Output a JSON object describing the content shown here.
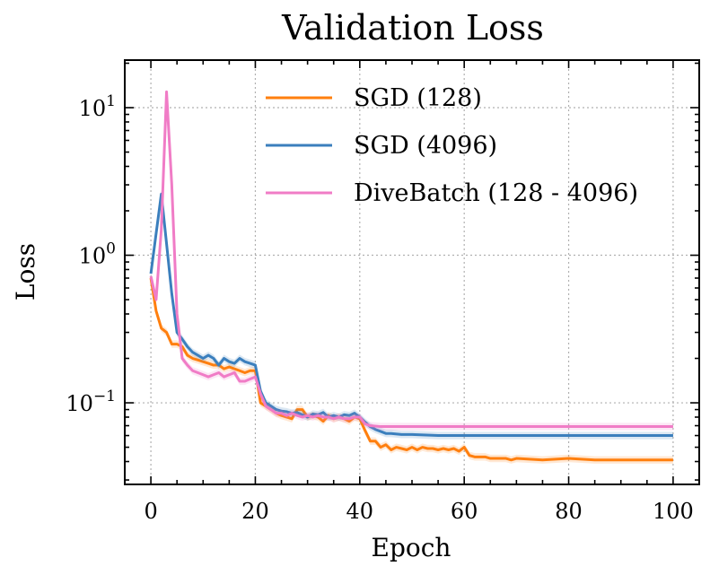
{
  "chart_data": {
    "type": "line",
    "title": "Validation Loss",
    "xlabel": "Epoch",
    "ylabel": "Loss",
    "yscale": "log",
    "xlim": [
      -5,
      105
    ],
    "ylim": [
      0.028,
      21
    ],
    "x_ticks": [
      0,
      20,
      40,
      60,
      80,
      100
    ],
    "y_ticks": [
      {
        "value": 10,
        "base": "10",
        "exp": "1"
      },
      {
        "value": 1,
        "base": "10",
        "exp": "0"
      },
      {
        "value": 0.1,
        "base": "10",
        "exp": "−1"
      }
    ],
    "grid": true,
    "legend_position": "top-right",
    "series": [
      {
        "name": "SGD (128)",
        "color": "#ff7f0e",
        "points": [
          [
            0,
            0.7
          ],
          [
            1,
            0.42
          ],
          [
            2,
            0.32
          ],
          [
            3,
            0.3
          ],
          [
            4,
            0.25
          ],
          [
            5,
            0.25
          ],
          [
            6,
            0.24
          ],
          [
            7,
            0.21
          ],
          [
            8,
            0.2
          ],
          [
            9,
            0.195
          ],
          [
            10,
            0.19
          ],
          [
            11,
            0.185
          ],
          [
            12,
            0.18
          ],
          [
            13,
            0.18
          ],
          [
            14,
            0.17
          ],
          [
            15,
            0.175
          ],
          [
            16,
            0.17
          ],
          [
            17,
            0.165
          ],
          [
            18,
            0.16
          ],
          [
            19,
            0.165
          ],
          [
            20,
            0.165
          ],
          [
            21,
            0.1
          ],
          [
            22,
            0.095
          ],
          [
            23,
            0.09
          ],
          [
            24,
            0.085
          ],
          [
            25,
            0.082
          ],
          [
            26,
            0.08
          ],
          [
            27,
            0.078
          ],
          [
            28,
            0.09
          ],
          [
            29,
            0.09
          ],
          [
            30,
            0.08
          ],
          [
            31,
            0.082
          ],
          [
            32,
            0.08
          ],
          [
            33,
            0.075
          ],
          [
            34,
            0.082
          ],
          [
            35,
            0.078
          ],
          [
            36,
            0.08
          ],
          [
            37,
            0.078
          ],
          [
            38,
            0.075
          ],
          [
            39,
            0.08
          ],
          [
            40,
            0.078
          ],
          [
            41,
            0.065
          ],
          [
            42,
            0.055
          ],
          [
            43,
            0.055
          ],
          [
            44,
            0.05
          ],
          [
            45,
            0.052
          ],
          [
            46,
            0.048
          ],
          [
            47,
            0.05
          ],
          [
            48,
            0.049
          ],
          [
            49,
            0.048
          ],
          [
            50,
            0.05
          ],
          [
            51,
            0.048
          ],
          [
            52,
            0.05
          ],
          [
            53,
            0.049
          ],
          [
            54,
            0.049
          ],
          [
            55,
            0.048
          ],
          [
            56,
            0.049
          ],
          [
            57,
            0.048
          ],
          [
            58,
            0.049
          ],
          [
            59,
            0.047
          ],
          [
            60,
            0.05
          ],
          [
            61,
            0.044
          ],
          [
            62,
            0.043
          ],
          [
            63,
            0.043
          ],
          [
            64,
            0.043
          ],
          [
            65,
            0.042
          ],
          [
            66,
            0.042
          ],
          [
            67,
            0.042
          ],
          [
            68,
            0.042
          ],
          [
            69,
            0.041
          ],
          [
            70,
            0.042
          ],
          [
            75,
            0.041
          ],
          [
            80,
            0.042
          ],
          [
            85,
            0.041
          ],
          [
            90,
            0.041
          ],
          [
            95,
            0.041
          ],
          [
            100,
            0.041
          ]
        ]
      },
      {
        "name": "SGD (4096)",
        "color": "#3b7fbd",
        "points": [
          [
            0,
            0.75
          ],
          [
            1,
            1.4
          ],
          [
            2,
            2.6
          ],
          [
            3,
            1.2
          ],
          [
            4,
            0.55
          ],
          [
            5,
            0.3
          ],
          [
            6,
            0.27
          ],
          [
            7,
            0.24
          ],
          [
            8,
            0.22
          ],
          [
            9,
            0.21
          ],
          [
            10,
            0.2
          ],
          [
            11,
            0.21
          ],
          [
            12,
            0.2
          ],
          [
            13,
            0.18
          ],
          [
            14,
            0.2
          ],
          [
            15,
            0.19
          ],
          [
            16,
            0.185
          ],
          [
            17,
            0.2
          ],
          [
            18,
            0.19
          ],
          [
            19,
            0.185
          ],
          [
            20,
            0.18
          ],
          [
            21,
            0.12
          ],
          [
            22,
            0.1
          ],
          [
            23,
            0.095
          ],
          [
            24,
            0.09
          ],
          [
            25,
            0.088
          ],
          [
            26,
            0.087
          ],
          [
            27,
            0.085
          ],
          [
            28,
            0.086
          ],
          [
            29,
            0.083
          ],
          [
            30,
            0.08
          ],
          [
            31,
            0.084
          ],
          [
            32,
            0.083
          ],
          [
            33,
            0.086
          ],
          [
            34,
            0.08
          ],
          [
            35,
            0.082
          ],
          [
            36,
            0.08
          ],
          [
            37,
            0.083
          ],
          [
            38,
            0.082
          ],
          [
            39,
            0.085
          ],
          [
            40,
            0.08
          ],
          [
            41,
            0.074
          ],
          [
            42,
            0.069
          ],
          [
            43,
            0.066
          ],
          [
            44,
            0.064
          ],
          [
            45,
            0.062
          ],
          [
            46,
            0.062
          ],
          [
            48,
            0.061
          ],
          [
            50,
            0.061
          ],
          [
            55,
            0.06
          ],
          [
            60,
            0.06
          ],
          [
            70,
            0.06
          ],
          [
            80,
            0.06
          ],
          [
            90,
            0.06
          ],
          [
            100,
            0.06
          ]
        ]
      },
      {
        "name": "DiveBatch (128 - 4096)",
        "color": "#f07cc6",
        "points": [
          [
            0,
            0.72
          ],
          [
            1,
            0.5
          ],
          [
            2,
            1.5
          ],
          [
            3,
            12.8
          ],
          [
            4,
            3.0
          ],
          [
            5,
            0.4
          ],
          [
            6,
            0.2
          ],
          [
            7,
            0.18
          ],
          [
            8,
            0.165
          ],
          [
            9,
            0.16
          ],
          [
            10,
            0.155
          ],
          [
            11,
            0.15
          ],
          [
            12,
            0.155
          ],
          [
            13,
            0.16
          ],
          [
            14,
            0.15
          ],
          [
            15,
            0.155
          ],
          [
            16,
            0.16
          ],
          [
            17,
            0.14
          ],
          [
            18,
            0.14
          ],
          [
            19,
            0.145
          ],
          [
            20,
            0.15
          ],
          [
            21,
            0.115
          ],
          [
            22,
            0.095
          ],
          [
            23,
            0.09
          ],
          [
            24,
            0.085
          ],
          [
            25,
            0.085
          ],
          [
            26,
            0.082
          ],
          [
            27,
            0.085
          ],
          [
            28,
            0.082
          ],
          [
            29,
            0.08
          ],
          [
            30,
            0.082
          ],
          [
            31,
            0.08
          ],
          [
            32,
            0.082
          ],
          [
            33,
            0.08
          ],
          [
            34,
            0.08
          ],
          [
            35,
            0.078
          ],
          [
            36,
            0.08
          ],
          [
            37,
            0.078
          ],
          [
            38,
            0.078
          ],
          [
            39,
            0.08
          ],
          [
            40,
            0.08
          ],
          [
            41,
            0.072
          ],
          [
            42,
            0.07
          ],
          [
            44,
            0.069
          ],
          [
            50,
            0.069
          ],
          [
            60,
            0.069
          ],
          [
            70,
            0.069
          ],
          [
            80,
            0.069
          ],
          [
            90,
            0.069
          ],
          [
            100,
            0.069
          ]
        ]
      }
    ]
  }
}
